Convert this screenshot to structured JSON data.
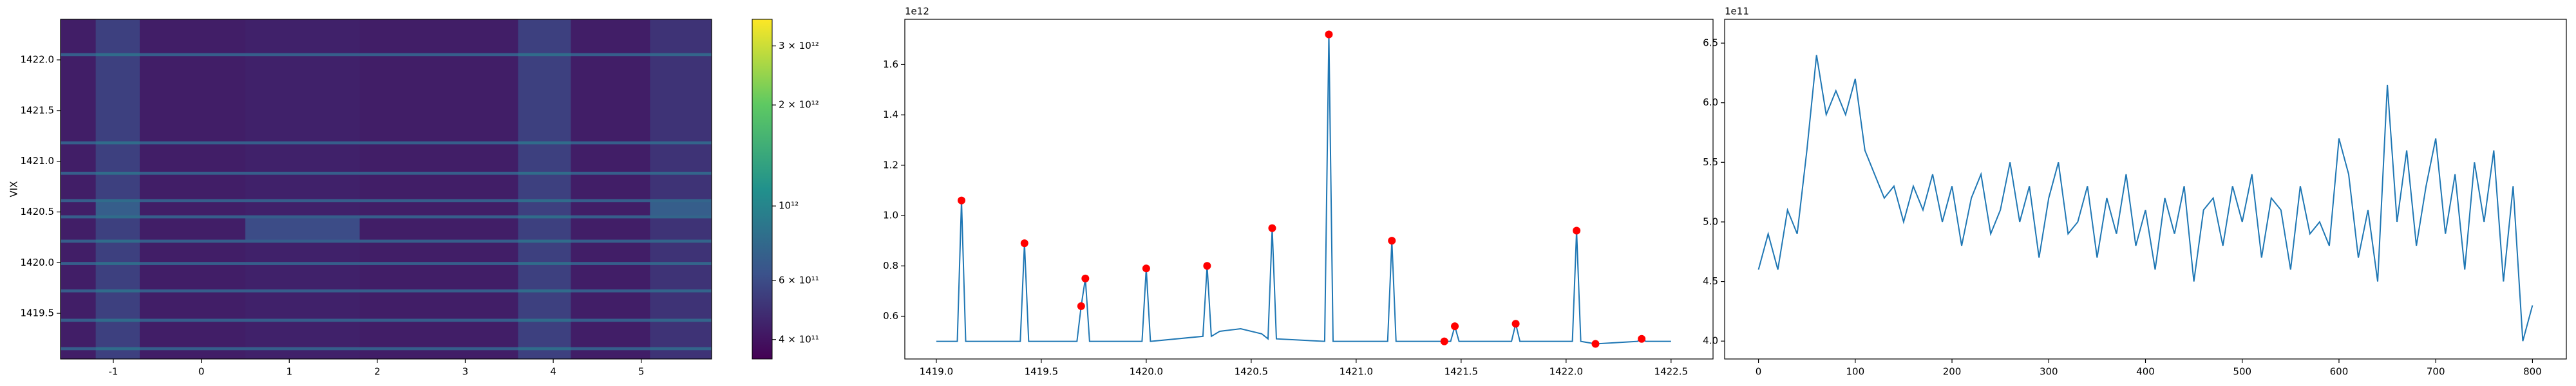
{
  "chart_data": [
    {
      "type": "heatmap",
      "ylabel": "VIX",
      "colormap": "viridis",
      "xbins": [
        -1.6,
        -1.2,
        -0.7,
        0.5,
        1.8,
        3.6,
        4.2,
        5.1,
        5.8
      ],
      "ybins": [
        1419.05,
        1419.14,
        1419.17,
        1419.42,
        1419.45,
        1419.71,
        1419.74,
        1419.98,
        1420.01,
        1420.2,
        1420.23,
        1420.44,
        1420.47,
        1420.6,
        1420.63,
        1420.87,
        1420.9,
        1421.17,
        1421.2,
        1422.04,
        1422.07,
        1422.4
      ],
      "z": [
        [
          430000000000.0,
          550000000000.0,
          430000000000.0,
          440000000000.0,
          430000000000.0,
          550000000000.0,
          430000000000.0,
          500000000000.0
        ],
        [
          700000000000.0,
          800000000000.0,
          700000000000.0,
          700000000000.0,
          700000000000.0,
          800000000000.0,
          700000000000.0,
          750000000000.0
        ],
        [
          430000000000.0,
          550000000000.0,
          430000000000.0,
          440000000000.0,
          430000000000.0,
          550000000000.0,
          430000000000.0,
          500000000000.0
        ],
        [
          700000000000.0,
          800000000000.0,
          700000000000.0,
          700000000000.0,
          700000000000.0,
          800000000000.0,
          700000000000.0,
          750000000000.0
        ],
        [
          430000000000.0,
          550000000000.0,
          430000000000.0,
          440000000000.0,
          430000000000.0,
          550000000000.0,
          430000000000.0,
          500000000000.0
        ],
        [
          700000000000.0,
          800000000000.0,
          700000000000.0,
          700000000000.0,
          700000000000.0,
          800000000000.0,
          700000000000.0,
          750000000000.0
        ],
        [
          430000000000.0,
          550000000000.0,
          430000000000.0,
          440000000000.0,
          430000000000.0,
          550000000000.0,
          430000000000.0,
          500000000000.0
        ],
        [
          700000000000.0,
          800000000000.0,
          700000000000.0,
          700000000000.0,
          700000000000.0,
          800000000000.0,
          700000000000.0,
          750000000000.0
        ],
        [
          430000000000.0,
          550000000000.0,
          430000000000.0,
          440000000000.0,
          430000000000.0,
          550000000000.0,
          430000000000.0,
          500000000000.0
        ],
        [
          700000000000.0,
          800000000000.0,
          700000000000.0,
          700000000000.0,
          700000000000.0,
          800000000000.0,
          700000000000.0,
          750000000000.0
        ],
        [
          430000000000.0,
          550000000000.0,
          430000000000.0,
          600000000000.0,
          430000000000.0,
          550000000000.0,
          430000000000.0,
          500000000000.0
        ],
        [
          700000000000.0,
          800000000000.0,
          700000000000.0,
          700000000000.0,
          700000000000.0,
          800000000000.0,
          700000000000.0,
          750000000000.0
        ],
        [
          430000000000.0,
          700000000000.0,
          430000000000.0,
          440000000000.0,
          430000000000.0,
          550000000000.0,
          430000000000.0,
          700000000000.0
        ],
        [
          700000000000.0,
          800000000000.0,
          700000000000.0,
          700000000000.0,
          700000000000.0,
          800000000000.0,
          700000000000.0,
          750000000000.0
        ],
        [
          430000000000.0,
          550000000000.0,
          430000000000.0,
          440000000000.0,
          430000000000.0,
          550000000000.0,
          430000000000.0,
          500000000000.0
        ],
        [
          700000000000.0,
          800000000000.0,
          700000000000.0,
          700000000000.0,
          700000000000.0,
          800000000000.0,
          700000000000.0,
          750000000000.0
        ],
        [
          430000000000.0,
          550000000000.0,
          430000000000.0,
          440000000000.0,
          430000000000.0,
          550000000000.0,
          430000000000.0,
          500000000000.0
        ],
        [
          700000000000.0,
          800000000000.0,
          700000000000.0,
          700000000000.0,
          700000000000.0,
          800000000000.0,
          700000000000.0,
          750000000000.0
        ],
        [
          430000000000.0,
          550000000000.0,
          430000000000.0,
          440000000000.0,
          430000000000.0,
          550000000000.0,
          430000000000.0,
          500000000000.0
        ],
        [
          700000000000.0,
          800000000000.0,
          700000000000.0,
          700000000000.0,
          700000000000.0,
          800000000000.0,
          700000000000.0,
          750000000000.0
        ],
        [
          430000000000.0,
          550000000000.0,
          430000000000.0,
          440000000000.0,
          430000000000.0,
          550000000000.0,
          430000000000.0,
          500000000000.0
        ]
      ],
      "xlim": [
        -1.6,
        5.8
      ],
      "xticks": [
        -1,
        0,
        1,
        2,
        3,
        4,
        5
      ],
      "ylim": [
        1419.05,
        1422.4
      ],
      "yticks": [
        1419.5,
        {
          "value": 1420,
          "label": "1420.0"
        },
        1420.5,
        {
          "value": 1421,
          "label": "1421.0"
        },
        1421.5,
        {
          "value": 1422,
          "label": "1422.0"
        }
      ],
      "colorbar": {
        "log": true,
        "lim": [
          350000000000.0,
          3600000000000.0
        ],
        "ticks": [
          {
            "value": 400000000000.0,
            "label": "4 × 10¹¹"
          },
          {
            "value": 600000000000.0,
            "label": "6 × 10¹¹"
          },
          {
            "value": 1000000000000.0,
            "label": "10¹²"
          },
          {
            "value": 2000000000000.0,
            "label": "2 × 10¹²"
          },
          {
            "value": 3000000000000.0,
            "label": "3 × 10¹²"
          }
        ]
      }
    },
    {
      "type": "line",
      "offset_label": "1e12",
      "color": "#1f77b4",
      "x": [
        1419.0,
        1419.1,
        1419.12,
        1419.14,
        1419.4,
        1419.42,
        1419.44,
        1419.67,
        1419.69,
        1419.71,
        1419.73,
        1419.98,
        1420.0,
        1420.02,
        1420.27,
        1420.29,
        1420.31,
        1420.35,
        1420.45,
        1420.55,
        1420.58,
        1420.6,
        1420.62,
        1420.85,
        1420.87,
        1420.89,
        1421.15,
        1421.17,
        1421.19,
        1421.4,
        1421.42,
        1421.45,
        1421.47,
        1421.49,
        1421.74,
        1421.76,
        1421.78,
        1422.03,
        1422.05,
        1422.07,
        1422.14,
        1422.34,
        1422.36,
        1422.38,
        1422.5
      ],
      "values": [
        0.5,
        0.5,
        1.06,
        0.5,
        0.5,
        0.89,
        0.5,
        0.5,
        0.64,
        0.75,
        0.5,
        0.5,
        0.79,
        0.5,
        0.52,
        0.8,
        0.52,
        0.54,
        0.55,
        0.53,
        0.51,
        0.95,
        0.51,
        0.5,
        1.72,
        0.5,
        0.5,
        0.9,
        0.5,
        0.5,
        0.5,
        0.5,
        0.56,
        0.5,
        0.5,
        0.57,
        0.5,
        0.5,
        0.94,
        0.5,
        0.49,
        0.5,
        0.51,
        0.5,
        0.5
      ],
      "peaks": {
        "color": "#ff0000",
        "x": [
          1419.12,
          1419.42,
          1419.69,
          1419.71,
          1420.0,
          1420.29,
          1420.6,
          1420.87,
          1421.17,
          1421.42,
          1421.47,
          1421.76,
          1422.05,
          1422.14,
          1422.36
        ],
        "values": [
          1.06,
          0.89,
          0.64,
          0.75,
          0.79,
          0.8,
          0.95,
          1.72,
          0.9,
          0.5,
          0.56,
          0.57,
          0.94,
          0.49,
          0.51
        ]
      },
      "xlim": [
        1418.85,
        1422.7
      ],
      "xticks": [
        {
          "value": 1419,
          "label": "1419.0"
        },
        1419.5,
        {
          "value": 1420,
          "label": "1420.0"
        },
        1420.5,
        {
          "value": 1421,
          "label": "1421.0"
        },
        1421.5,
        {
          "value": 1422,
          "label": "1422.0"
        },
        1422.5
      ],
      "ylim": [
        0.43,
        1.78
      ],
      "yticks": [
        0.6,
        0.8,
        {
          "value": 1,
          "label": "1.0"
        },
        1.2,
        1.4,
        1.6
      ]
    },
    {
      "type": "line",
      "offset_label": "1e11",
      "color": "#1f77b4",
      "x": [
        0,
        10,
        20,
        30,
        40,
        50,
        60,
        70,
        80,
        90,
        100,
        110,
        120,
        130,
        140,
        150,
        160,
        170,
        180,
        190,
        200,
        210,
        220,
        230,
        240,
        250,
        260,
        270,
        280,
        290,
        300,
        310,
        320,
        330,
        340,
        350,
        360,
        370,
        380,
        390,
        400,
        410,
        420,
        430,
        440,
        450,
        460,
        470,
        480,
        490,
        500,
        510,
        520,
        530,
        540,
        550,
        560,
        570,
        580,
        590,
        600,
        610,
        620,
        630,
        640,
        650,
        660,
        670,
        680,
        690,
        700,
        710,
        720,
        730,
        740,
        750,
        760,
        770,
        780,
        790,
        800
      ],
      "values": [
        4.6,
        4.9,
        4.6,
        5.1,
        4.9,
        5.6,
        6.4,
        5.9,
        6.1,
        5.9,
        6.2,
        5.6,
        5.4,
        5.2,
        5.3,
        5.0,
        5.3,
        5.1,
        5.4,
        5.0,
        5.3,
        4.8,
        5.2,
        5.4,
        4.9,
        5.1,
        5.5,
        5.0,
        5.3,
        4.7,
        5.2,
        5.5,
        4.9,
        5.0,
        5.3,
        4.7,
        5.2,
        4.9,
        5.4,
        4.8,
        5.1,
        4.6,
        5.2,
        4.9,
        5.3,
        4.5,
        5.1,
        5.2,
        4.8,
        5.3,
        5.0,
        5.4,
        4.7,
        5.2,
        5.1,
        4.6,
        5.3,
        4.9,
        5.0,
        4.8,
        5.7,
        5.4,
        4.7,
        5.1,
        4.5,
        6.15,
        5.0,
        5.6,
        4.8,
        5.3,
        5.7,
        4.9,
        5.4,
        4.6,
        5.5,
        5.0,
        5.6,
        4.5,
        5.3,
        4.0,
        4.3
      ],
      "xlim": [
        -35,
        835
      ],
      "xticks": [
        0,
        100,
        200,
        300,
        400,
        500,
        600,
        700,
        800
      ],
      "ylim": [
        3.85,
        6.7
      ],
      "yticks": [
        {
          "value": 4,
          "label": "4.0"
        },
        4.5,
        {
          "value": 5,
          "label": "5.0"
        },
        5.5,
        {
          "value": 6,
          "label": "6.0"
        },
        6.5
      ]
    }
  ]
}
